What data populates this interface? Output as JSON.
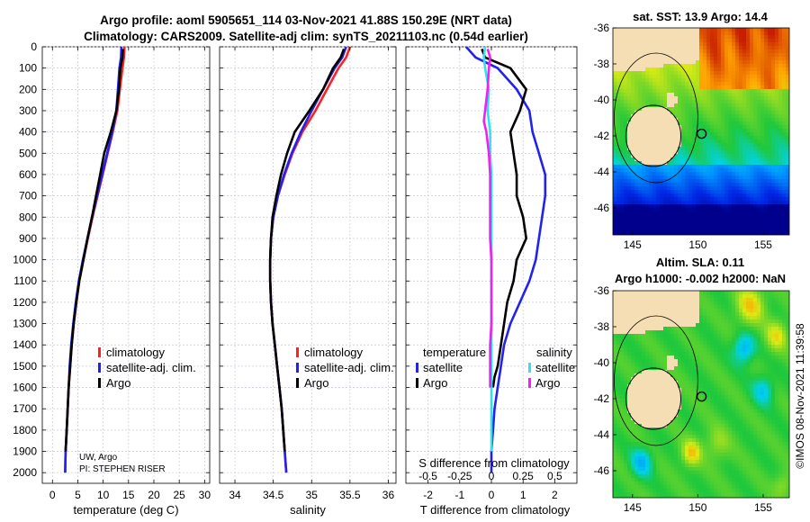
{
  "header": {
    "title_line1": "Argo profile: aoml 5905651_114 03-Nov-2021 41.88S 150.29E (NRT data)",
    "title_line2": "Climatology: CARS2009. Satellite-adj clim: synTS_20211103.nc (0.54d earlier)"
  },
  "colors": {
    "climatology": "#ff2020",
    "satellite": "#2222ee",
    "argo": "#000000",
    "sal_satellite": "#33e0ee",
    "sal_argo": "#ee22ee"
  },
  "chart_data": [
    {
      "type": "line",
      "name": "temperature",
      "xlabel": "temperature (deg C)",
      "xlim": [
        -2,
        31
      ],
      "ylim": [
        2050,
        0
      ],
      "xticks": [
        0,
        5,
        10,
        15,
        20,
        25,
        30
      ],
      "yticks": [
        0,
        100,
        200,
        300,
        400,
        500,
        600,
        700,
        800,
        900,
        1000,
        1100,
        1200,
        1300,
        1400,
        1500,
        1600,
        1700,
        1800,
        1900,
        2000
      ],
      "legend": [
        "climatology",
        "satellite-adj. clim.",
        "Argo"
      ],
      "credit_lines": [
        "UW, Argo",
        "PI: STEPHEN RISER"
      ],
      "series": [
        {
          "name": "climatology",
          "color_key": "climatology",
          "x": [
            14.2,
            14.1,
            13.8,
            13.3,
            12.8,
            11.9,
            10.9,
            9.9,
            8.9,
            7.9,
            7.0,
            6.1,
            5.3,
            4.7,
            4.2,
            3.8,
            3.5,
            3.2,
            3.0,
            2.8,
            2.6,
            2.5
          ],
          "y": [
            0,
            50,
            100,
            200,
            300,
            400,
            500,
            600,
            700,
            800,
            900,
            1000,
            1100,
            1200,
            1300,
            1400,
            1500,
            1600,
            1700,
            1800,
            1900,
            2000
          ]
        },
        {
          "name": "satellite-adj. clim.",
          "color_key": "satellite",
          "x": [
            13.6,
            13.5,
            13.2,
            12.9,
            12.6,
            11.8,
            10.8,
            9.8,
            8.8,
            7.8,
            6.9,
            6.0,
            5.2,
            4.6,
            4.1,
            3.7,
            3.4,
            3.2,
            3.0,
            2.8,
            2.6,
            2.5
          ],
          "y": [
            0,
            50,
            100,
            200,
            300,
            400,
            500,
            600,
            700,
            800,
            900,
            1000,
            1100,
            1200,
            1300,
            1400,
            1500,
            1600,
            1700,
            1800,
            1900,
            2000
          ]
        },
        {
          "name": "Argo",
          "color_key": "argo",
          "x": [
            13.9,
            13.8,
            13.4,
            13.1,
            12.6,
            11.5,
            10.2,
            9.4,
            8.6,
            7.8,
            6.9,
            6.1,
            5.3,
            4.7,
            4.2,
            3.8,
            3.5,
            3.2,
            3.0,
            2.8,
            2.6
          ],
          "y": [
            10,
            50,
            100,
            200,
            300,
            400,
            500,
            600,
            700,
            800,
            900,
            1000,
            1100,
            1200,
            1300,
            1400,
            1500,
            1600,
            1700,
            1800,
            1900
          ]
        }
      ]
    },
    {
      "type": "line",
      "name": "salinity",
      "xlabel": "salinity",
      "xlim": [
        33.8,
        36.1
      ],
      "ylim": [
        2050,
        0
      ],
      "xticks": [
        34,
        34.5,
        35,
        35.5,
        36
      ],
      "legend": [
        "climatology",
        "satellite-adj. clim.",
        "Argo"
      ],
      "series": [
        {
          "name": "climatology",
          "color_key": "climatology",
          "x": [
            35.5,
            35.45,
            35.35,
            35.2,
            35.05,
            34.88,
            34.75,
            34.65,
            34.56,
            34.5,
            34.47,
            34.46,
            34.46,
            34.47,
            34.49,
            34.52,
            34.55,
            34.58,
            34.61,
            34.63,
            34.65,
            34.67
          ],
          "y": [
            0,
            50,
            100,
            200,
            300,
            400,
            500,
            600,
            700,
            800,
            900,
            1000,
            1100,
            1200,
            1300,
            1400,
            1500,
            1600,
            1700,
            1800,
            1900,
            2000
          ]
        },
        {
          "name": "satellite-adj. clim.",
          "color_key": "satellite",
          "x": [
            35.45,
            35.4,
            35.3,
            35.15,
            35.0,
            34.86,
            34.74,
            34.64,
            34.56,
            34.5,
            34.47,
            34.46,
            34.46,
            34.47,
            34.49,
            34.52,
            34.55,
            34.58,
            34.61,
            34.63,
            34.65,
            34.67
          ],
          "y": [
            0,
            50,
            100,
            200,
            300,
            400,
            500,
            600,
            700,
            800,
            900,
            1000,
            1100,
            1200,
            1300,
            1400,
            1500,
            1600,
            1700,
            1800,
            1900,
            2000
          ]
        },
        {
          "name": "Argo",
          "color_key": "argo",
          "x": [
            35.42,
            35.38,
            35.28,
            35.15,
            34.97,
            34.78,
            34.68,
            34.6,
            34.54,
            34.49,
            34.47,
            34.46,
            34.46,
            34.47,
            34.49,
            34.52,
            34.55,
            34.58,
            34.61,
            34.63,
            34.65
          ],
          "y": [
            10,
            50,
            100,
            200,
            300,
            400,
            500,
            600,
            700,
            800,
            900,
            1000,
            1100,
            1200,
            1300,
            1400,
            1500,
            1600,
            1700,
            1800,
            1900
          ]
        }
      ]
    },
    {
      "type": "line",
      "name": "difference from climatology",
      "xlabel": "T difference from climatology",
      "xlabel_top": "S difference from climatology",
      "xlim": [
        -2.7,
        2.7
      ],
      "ylim": [
        2050,
        0
      ],
      "xticks": [
        -2,
        -1,
        0,
        1,
        2
      ],
      "xticks_s": [
        "-0.5",
        "-0.25",
        "0",
        "0.25",
        "0.5"
      ],
      "legend_titles": [
        "temperature",
        "salinity"
      ],
      "legend_t": [
        "satellite",
        "Argo"
      ],
      "legend_s": [
        "satellite",
        "Argo"
      ],
      "series": [
        {
          "name": "T satellite",
          "color_key": "satellite",
          "x": [
            -0.8,
            -0.5,
            0.2,
            0.8,
            1.2,
            1.3,
            1.5,
            1.7,
            1.7,
            1.6,
            1.5,
            1.4,
            1.2,
            0.9,
            0.6,
            0.4,
            0.3,
            0.2,
            0.1,
            0.05,
            0.0,
            0.0
          ],
          "y": [
            0,
            50,
            100,
            200,
            300,
            400,
            500,
            600,
            700,
            800,
            900,
            1000,
            1100,
            1200,
            1300,
            1400,
            1500,
            1600,
            1700,
            1800,
            1900,
            2000
          ]
        },
        {
          "name": "T Argo",
          "color_key": "argo",
          "x": [
            -0.3,
            -0.2,
            0.6,
            1.1,
            0.9,
            0.6,
            0.7,
            0.8,
            0.8,
            1.0,
            1.1,
            0.8,
            0.7,
            0.5,
            0.4,
            0.3,
            0.2,
            0.1,
            0.05
          ],
          "y": [
            10,
            50,
            100,
            200,
            300,
            400,
            500,
            600,
            700,
            800,
            900,
            1000,
            1100,
            1200,
            1300,
            1400,
            1500,
            1550,
            1600
          ]
        },
        {
          "name": "S satellite",
          "color_key": "sal_satellite",
          "x": [
            -0.05,
            -0.06,
            -0.05,
            -0.02,
            -0.03,
            -0.01,
            -0.01,
            0.0,
            0.0,
            0.0,
            0.0,
            0.0,
            0.0,
            0.0,
            0.0,
            0.0,
            0.0,
            0.0,
            0.0,
            0.0,
            0.0
          ],
          "y": [
            0,
            50,
            100,
            200,
            300,
            400,
            500,
            600,
            700,
            800,
            900,
            1000,
            1100,
            1200,
            1300,
            1400,
            1500,
            1600,
            1700,
            1800,
            1900
          ]
        },
        {
          "name": "S Argo",
          "color_key": "sal_argo",
          "x": [
            -0.03,
            -0.01,
            -0.02,
            -0.03,
            -0.06,
            -0.04,
            -0.02,
            -0.01,
            -0.01,
            -0.01,
            -0.01,
            0.0,
            0.0,
            0.0,
            0.0,
            -0.01,
            -0.01
          ],
          "y": [
            10,
            50,
            100,
            200,
            350,
            400,
            500,
            600,
            700,
            800,
            900,
            1000,
            1100,
            1200,
            1300,
            1400,
            1600
          ]
        }
      ]
    },
    {
      "type": "heatmap",
      "name": "SST map",
      "title": "sat. SST: 13.9 Argo: 14.4",
      "xlim": [
        143.5,
        157
      ],
      "ylim": [
        -47.5,
        -36
      ],
      "xticks": [
        145,
        150,
        155
      ],
      "yticks": [
        -36,
        -38,
        -40,
        -42,
        -44,
        -46
      ],
      "float_position": [
        150.29,
        -41.88
      ]
    },
    {
      "type": "heatmap",
      "name": "SLA map",
      "title_line1": "Altim. SLA: 0.11",
      "title_line2": "Argo h1000: -0.002 h2000: NaN",
      "xlim": [
        143.5,
        157
      ],
      "ylim": [
        -47.5,
        -36
      ],
      "xticks": [
        145,
        150,
        155
      ],
      "yticks": [
        -36,
        -38,
        -40,
        -42,
        -44,
        -46
      ],
      "float_position": [
        150.29,
        -41.88
      ]
    }
  ],
  "credit": "©IMOS 08-Nov-2021 11:39:58"
}
